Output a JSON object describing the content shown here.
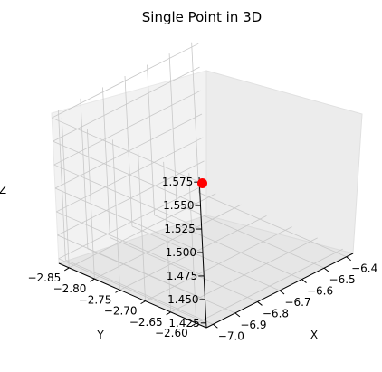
{
  "chart_data": {
    "type": "scatter",
    "projection": "3d",
    "title": "Single Point in 3D",
    "xlabel": "X",
    "ylabel": "Y",
    "zlabel": "Z",
    "xlim": [
      -7.03,
      -6.37
    ],
    "ylim": [
      -2.87,
      -2.58
    ],
    "zlim": [
      1.42,
      1.58
    ],
    "xticks": [
      "−7.0",
      "−6.9",
      "−6.8",
      "−6.7",
      "−6.6",
      "−6.5",
      "−6.4"
    ],
    "yticks": [
      "−2.85",
      "−2.80",
      "−2.75",
      "−2.70",
      "−2.65",
      "−2.60"
    ],
    "zticks": [
      "1.425",
      "1.450",
      "1.475",
      "1.500",
      "1.525",
      "1.550",
      "1.575"
    ],
    "points": [
      {
        "x": -6.7,
        "y": -2.725,
        "z": 1.5
      }
    ],
    "marker_color": "#ff0000",
    "grid": true
  }
}
